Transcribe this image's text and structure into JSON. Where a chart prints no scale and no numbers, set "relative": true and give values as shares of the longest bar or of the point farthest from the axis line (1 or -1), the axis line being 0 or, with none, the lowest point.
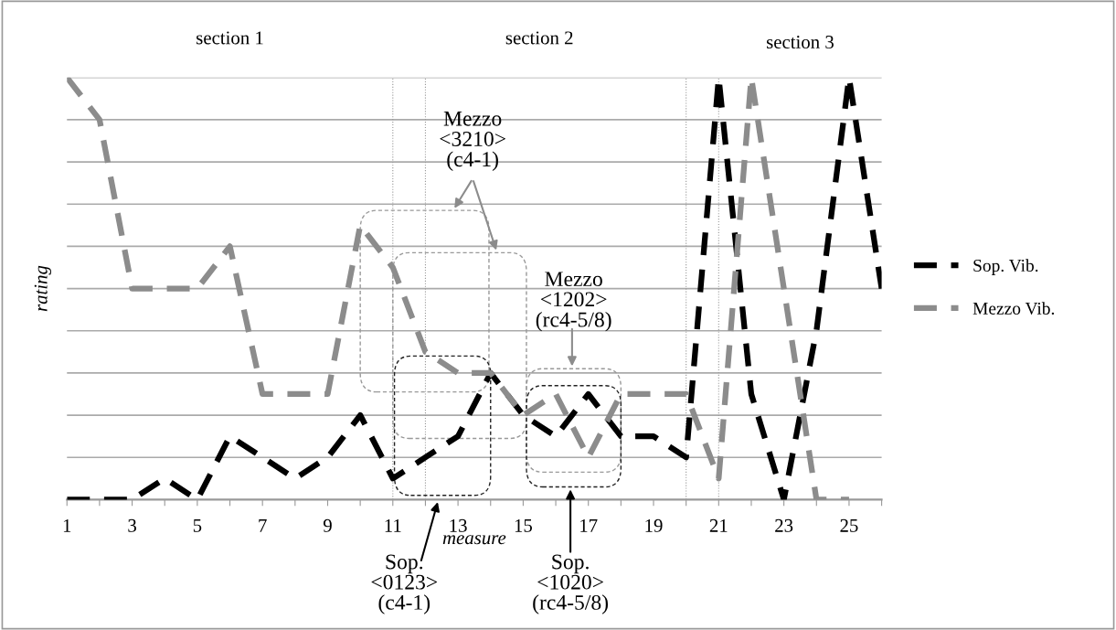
{
  "chart_data": {
    "type": "line",
    "xlabel": "measure",
    "ylabel": "rating",
    "relative": true,
    "x": [
      1,
      2,
      3,
      4,
      5,
      6,
      7,
      8,
      9,
      10,
      11,
      12,
      13,
      14,
      15,
      16,
      17,
      18,
      19,
      20,
      21,
      22,
      23,
      24,
      25,
      26
    ],
    "xlim": [
      1,
      26
    ],
    "xticks": [
      1,
      {
        "value": 2,
        "label": null
      },
      3,
      {
        "value": 4,
        "label": null
      },
      5,
      {
        "value": 6,
        "label": null
      },
      7,
      {
        "value": 8,
        "label": null
      },
      9,
      {
        "value": 10,
        "label": null
      },
      11,
      {
        "value": 12,
        "label": null
      },
      13,
      {
        "value": 14,
        "label": null
      },
      15,
      {
        "value": 16,
        "label": null
      },
      17,
      {
        "value": 18,
        "label": null
      },
      19,
      {
        "value": 20,
        "label": null
      },
      21,
      {
        "value": 22,
        "label": null
      },
      23,
      {
        "value": 24,
        "label": null
      },
      25,
      {
        "value": 26,
        "label": null
      }
    ],
    "series": [
      {
        "name": "Sop. Vib.",
        "color": "#000000",
        "values": [
          0,
          0,
          0,
          0.05,
          0,
          0.15,
          0.1,
          0.05,
          0.1,
          0.2,
          0.05,
          0.1,
          0.15,
          0.3,
          0.2,
          0.15,
          0.25,
          0.15,
          0.15,
          0.1,
          1,
          0.25,
          0,
          0.4,
          1,
          0.5
        ]
      },
      {
        "name": "Mezzo Vib.",
        "color": "#8c8c8c",
        "values": [
          1,
          0.9,
          0.5,
          0.5,
          0.5,
          0.6,
          0.25,
          0.25,
          0.25,
          0.65,
          0.55,
          0.35,
          0.3,
          0.3,
          0.2,
          0.25,
          0.1,
          0.25,
          0.25,
          0.25,
          0.05,
          1,
          0.5,
          0,
          0,
          null
        ]
      }
    ],
    "ref_lines": [
      {
        "axis": "x",
        "value": 11,
        "color": "#999999",
        "line_style": "dotted"
      },
      {
        "axis": "x",
        "value": 12,
        "color": "#999999",
        "line_style": "dotted"
      },
      {
        "axis": "x",
        "value": 20,
        "color": "#999999",
        "line_style": "dotted"
      },
      {
        "axis": "x",
        "value": 21,
        "color": "#999999",
        "line_style": "dotted"
      }
    ],
    "annotations": [
      "section 1",
      "section 2",
      "section 3",
      "Mezzo\n<3210>\n(c4-1)",
      "Mezzo\n<1202>\n(rc4-5/8)",
      "Sop.\n<0123>\n(c4-1)",
      "Sop.\n<1020>\n(rc4-5/8)"
    ],
    "grid": "y",
    "legend": "right",
    "line_style": "dashed",
    "marker": "none"
  }
}
